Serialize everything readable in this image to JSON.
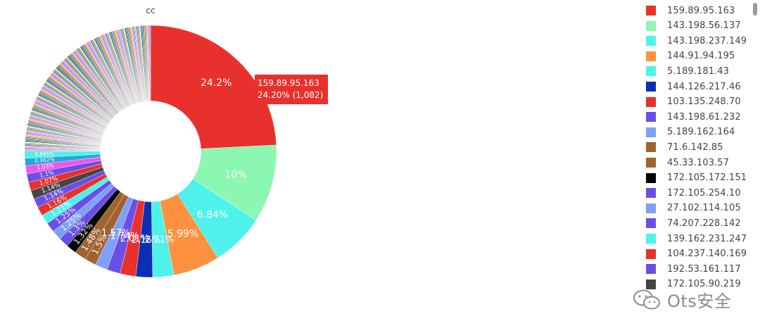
{
  "chart_data": {
    "type": "pie",
    "title": "cc",
    "hole": 0.4,
    "sort": "descending",
    "text_info": "percent",
    "slices": [
      {
        "label": "159.89.95.163",
        "percent": 24.2,
        "count": 1082,
        "color": "#e8302d"
      },
      {
        "label": "143.198.56.137",
        "percent": 10,
        "color": "#8cf7b0"
      },
      {
        "label": "143.198.237.149",
        "percent": 6.84,
        "color": "#4ef2ea"
      },
      {
        "label": "144.91.94.195",
        "percent": 5.99,
        "color": "#fe913f"
      },
      {
        "label": "5.189.181.43",
        "percent": 2.71,
        "color": "#4ef2ea"
      },
      {
        "label": "144.126.217.46",
        "percent": 2.15,
        "color": "#0a2fb5"
      },
      {
        "label": "103.135.248.70",
        "percent": 2.01,
        "color": "#e8302d"
      },
      {
        "label": "143.198.61.232",
        "percent": 1.74,
        "color": "#6a4fe6"
      },
      {
        "label": "5.189.162.164",
        "percent": 1.57,
        "color": "#7fa0f9"
      },
      {
        "label": "71.6.142.85",
        "percent": 1.5,
        "color": "#a0622e"
      },
      {
        "label": "45.33.103.57",
        "percent": 1.48,
        "color": "#a0622e"
      },
      {
        "label": "172.105.172.151",
        "percent": 1.32,
        "color": "#000000"
      },
      {
        "label": "172.105.254.10",
        "percent": 1.3,
        "color": "#6a4fe6"
      },
      {
        "label": "27.102.114.105",
        "percent": 1.25,
        "color": "#7fa0f9"
      },
      {
        "label": "74.207.228.142",
        "percent": 1.25,
        "color": "#6a4fe6"
      },
      {
        "label": "139.162.231.247",
        "percent": 1.21,
        "color": "#4ef2ea"
      },
      {
        "label": "104.237.140.169",
        "percent": 1.16,
        "color": "#e8302d"
      },
      {
        "label": "192.53.161.117",
        "percent": 1.14,
        "color": "#6a4fe6"
      },
      {
        "label": "172.105.90.219",
        "percent": 1.14,
        "color": "#454545"
      }
    ],
    "slice_labels": [
      "24.2%",
      "10%",
      "6.84%",
      "5.99%",
      "2.71%",
      "2.15%",
      "2.01%",
      "1.74%",
      "1.57%",
      "1.5%",
      "1.48%",
      "1.32%",
      "1.3%",
      "1.25%",
      "1.25%",
      "1.21%",
      "1.16%",
      "1.14%",
      "1.14%",
      "1.07%",
      "1.1%",
      "1.03%",
      "0.962%",
      "0.895%"
    ],
    "tail_colors": [
      "#e8302d",
      "#8cf7b0",
      "#4ef2ea",
      "#fe913f",
      "#0a2fb5",
      "#6a4fe6",
      "#7fa0f9",
      "#a0622e",
      "#000000",
      "#454545",
      "#ef55ef",
      "#3fbf5f",
      "#ffd24a",
      "#ff6fa8",
      "#b3e06a",
      "#2aa6d6",
      "#c08040",
      "#7a55ff"
    ],
    "tooltip": {
      "line1": "159.89.95.163",
      "line2": "24.20% (1,082)"
    },
    "legend": {
      "placement": "right",
      "scrollable": true
    }
  },
  "watermark": {
    "text": "Ots安全",
    "icon": "wechat-icon"
  }
}
